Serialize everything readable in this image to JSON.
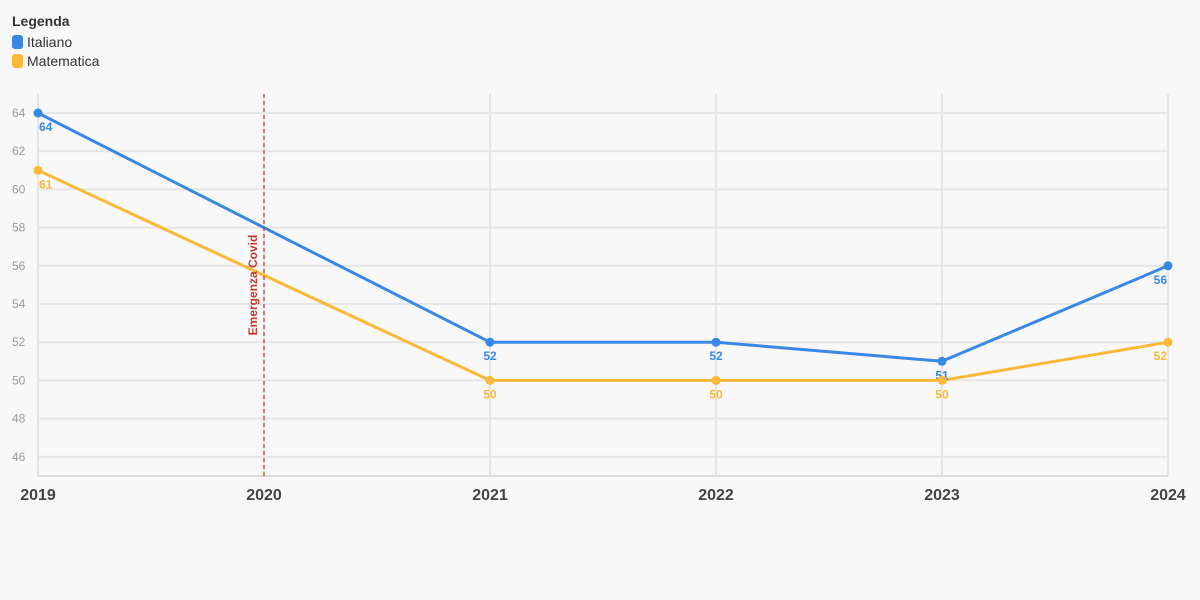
{
  "legend": {
    "title": "Legenda",
    "items": [
      {
        "label": "Italiano",
        "color": "#3a88e6"
      },
      {
        "label": "Matematica",
        "color": "#fbb939"
      }
    ]
  },
  "chart_data": {
    "type": "line",
    "x": [
      "2019",
      "2020",
      "2021",
      "2022",
      "2023",
      "2024"
    ],
    "series": [
      {
        "name": "Italiano",
        "color": "#3a88e6",
        "values": [
          64,
          null,
          52,
          52,
          51,
          56
        ]
      },
      {
        "name": "Matematica",
        "color": "#fbb939",
        "values": [
          61,
          null,
          50,
          50,
          50,
          52
        ]
      }
    ],
    "yticks": [
      46,
      48,
      50,
      52,
      54,
      56,
      58,
      60,
      62,
      64
    ],
    "ylim": [
      45,
      65
    ],
    "grid": true,
    "legend_position": "top-left",
    "annotations": [
      {
        "x": "2020",
        "label": "Emergenza Covid",
        "color": "#c0392b",
        "style": "dashed-vertical-line"
      }
    ]
  }
}
